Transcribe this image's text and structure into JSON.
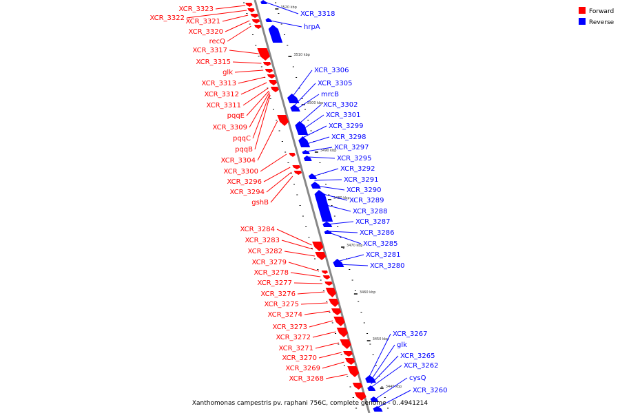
{
  "caption": "Xanthomonas campestris pv. raphani 756C, complete genome - 0..4941214",
  "legend": {
    "forward_label": "Forward",
    "reverse_label": "Reverse",
    "forward_color": "#ff0000",
    "reverse_color": "#0000ff"
  },
  "colors": {
    "forward": "#ff0000",
    "reverse": "#0000ff",
    "axis": "#888888",
    "tick": "#000000"
  },
  "scale_labels": [
    "3520 kbp",
    "3510 kbp",
    "3500 kbp",
    "3490 kbp",
    "3480 kbp",
    "3470 kbp",
    "3460 kbp",
    "3450 kbp",
    "3440 kbp"
  ],
  "forward_genes": [
    "XCR_3323",
    "XCR_3322",
    "XCR_3321",
    "XCR_3320",
    "recQ",
    "XCR_3317",
    "XCR_3315",
    "glk",
    "XCR_3313",
    "XCR_3312",
    "XCR_3311",
    "pqqE",
    "XCR_3309",
    "pqqC",
    "pqqB",
    "XCR_3304",
    "XCR_3300",
    "XCR_3296",
    "XCR_3294",
    "gshB",
    "XCR_3284",
    "XCR_3283",
    "XCR_3282",
    "XCR_3279",
    "XCR_3278",
    "XCR_3277",
    "XCR_3276",
    "XCR_3275",
    "XCR_3274",
    "XCR_3273",
    "XCR_3272",
    "XCR_3271",
    "XCR_3270",
    "XCR_3269",
    "XCR_3268"
  ],
  "reverse_genes": [
    "XCR_3318",
    "hrpA",
    "XCR_3306",
    "XCR_3305",
    "mrcB",
    "XCR_3302",
    "XCR_3301",
    "XCR_3299",
    "XCR_3298",
    "XCR_3297",
    "XCR_3295",
    "XCR_3292",
    "XCR_3291",
    "XCR_3290",
    "XCR_3289",
    "XCR_3288",
    "XCR_3287",
    "XCR_3286",
    "XCR_3285",
    "XCR_3281",
    "XCR_3280",
    "XCR_3267",
    "glk",
    "XCR_3265",
    "XCR_3262",
    "cysQ",
    "XCR_3260"
  ]
}
